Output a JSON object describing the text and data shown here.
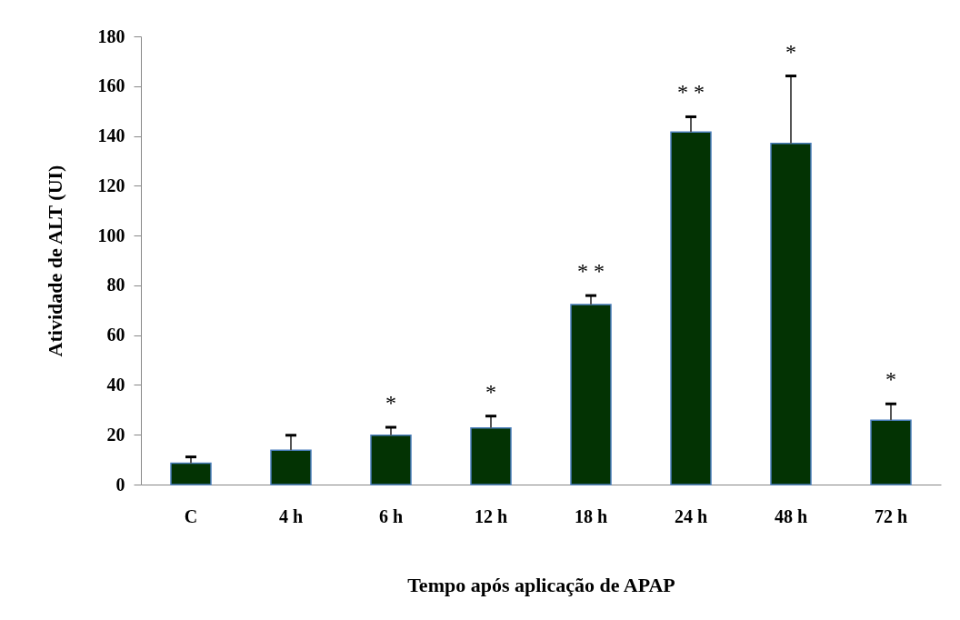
{
  "chart_data": {
    "type": "bar",
    "xlabel": "Tempo após aplicação de APAP",
    "ylabel": "Atividade de ALT (UI)",
    "categories": [
      "C",
      "4 h",
      "6 h",
      "12 h",
      "18 h",
      "24 h",
      "48 h",
      "72 h"
    ],
    "values": [
      8.6,
      13.8,
      19.8,
      22.7,
      72.3,
      141.6,
      137,
      25.8
    ],
    "errors": [
      [
        8.6,
        11.1
      ],
      [
        13.8,
        19.8
      ],
      [
        19.8,
        23
      ],
      [
        22.7,
        27.5
      ],
      [
        72.3,
        75.9
      ],
      [
        141.6,
        147.7
      ],
      [
        137,
        164.1
      ],
      [
        25.8,
        32.4
      ]
    ],
    "color": "#033303",
    "ylim": [
      0,
      180
    ],
    "yticks": [
      0,
      20,
      40,
      60,
      80,
      100,
      120,
      140,
      160,
      180
    ],
    "grid": false,
    "annotations": [
      {
        "text": "*",
        "x": "6 h",
        "y": 23
      },
      {
        "text": "*",
        "x": "12 h",
        "y": 27.5
      },
      {
        "text": "* *",
        "x": "18 h",
        "y": 75.9
      },
      {
        "text": "* *",
        "x": "24 h",
        "y": 147.7
      },
      {
        "text": "*",
        "x": "48 h",
        "y": 164.1
      },
      {
        "text": "*",
        "x": "72 h",
        "y": 32.4
      }
    ]
  }
}
